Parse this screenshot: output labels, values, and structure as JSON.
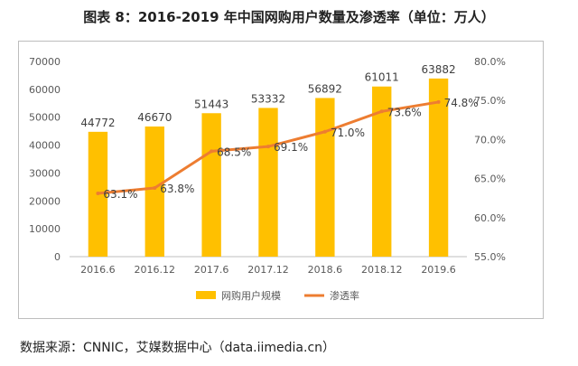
{
  "title": "图表 8：2016-2019 年中国网购用户数量及渗透率（单位：万人）",
  "source": "数据来源：CNNIC，艾媒数据中心（data.iimedia.cn）",
  "colors": {
    "bar": "#FFC000",
    "line": "#ED7D31",
    "axis": "#595959",
    "grid": "#d9d9d9"
  },
  "chart_data": {
    "type": "bar",
    "categories": [
      "2016.6",
      "2016.12",
      "2017.6",
      "2017.12",
      "2018.6",
      "2018.12",
      "2019.6"
    ],
    "series": [
      {
        "name": "网购用户规模",
        "type": "bar",
        "axis": "left",
        "values": [
          44772,
          46670,
          51443,
          53332,
          56892,
          61011,
          63882
        ],
        "labels": [
          "44772",
          "46670",
          "51443",
          "53332",
          "56892",
          "61011",
          "63882"
        ]
      },
      {
        "name": "渗透率",
        "type": "line",
        "axis": "right",
        "values": [
          63.1,
          63.8,
          68.5,
          69.1,
          71.0,
          73.6,
          74.8
        ],
        "labels": [
          "63.1%",
          "63.8%",
          "68.5%",
          "69.1%",
          "71.0%",
          "73.6%",
          "74.8%"
        ]
      }
    ],
    "y_left": {
      "ylim": [
        0,
        70000
      ],
      "ticks": [
        "0",
        "10000",
        "20000",
        "30000",
        "40000",
        "50000",
        "60000",
        "70000"
      ]
    },
    "y_right": {
      "ylim": [
        55,
        80
      ],
      "ticks": [
        "55.0%",
        "60.0%",
        "65.0%",
        "70.0%",
        "75.0%",
        "80.0%"
      ]
    },
    "legend": {
      "position": "bottom",
      "items": [
        "网购用户规模",
        "渗透率"
      ]
    },
    "grid": false
  }
}
